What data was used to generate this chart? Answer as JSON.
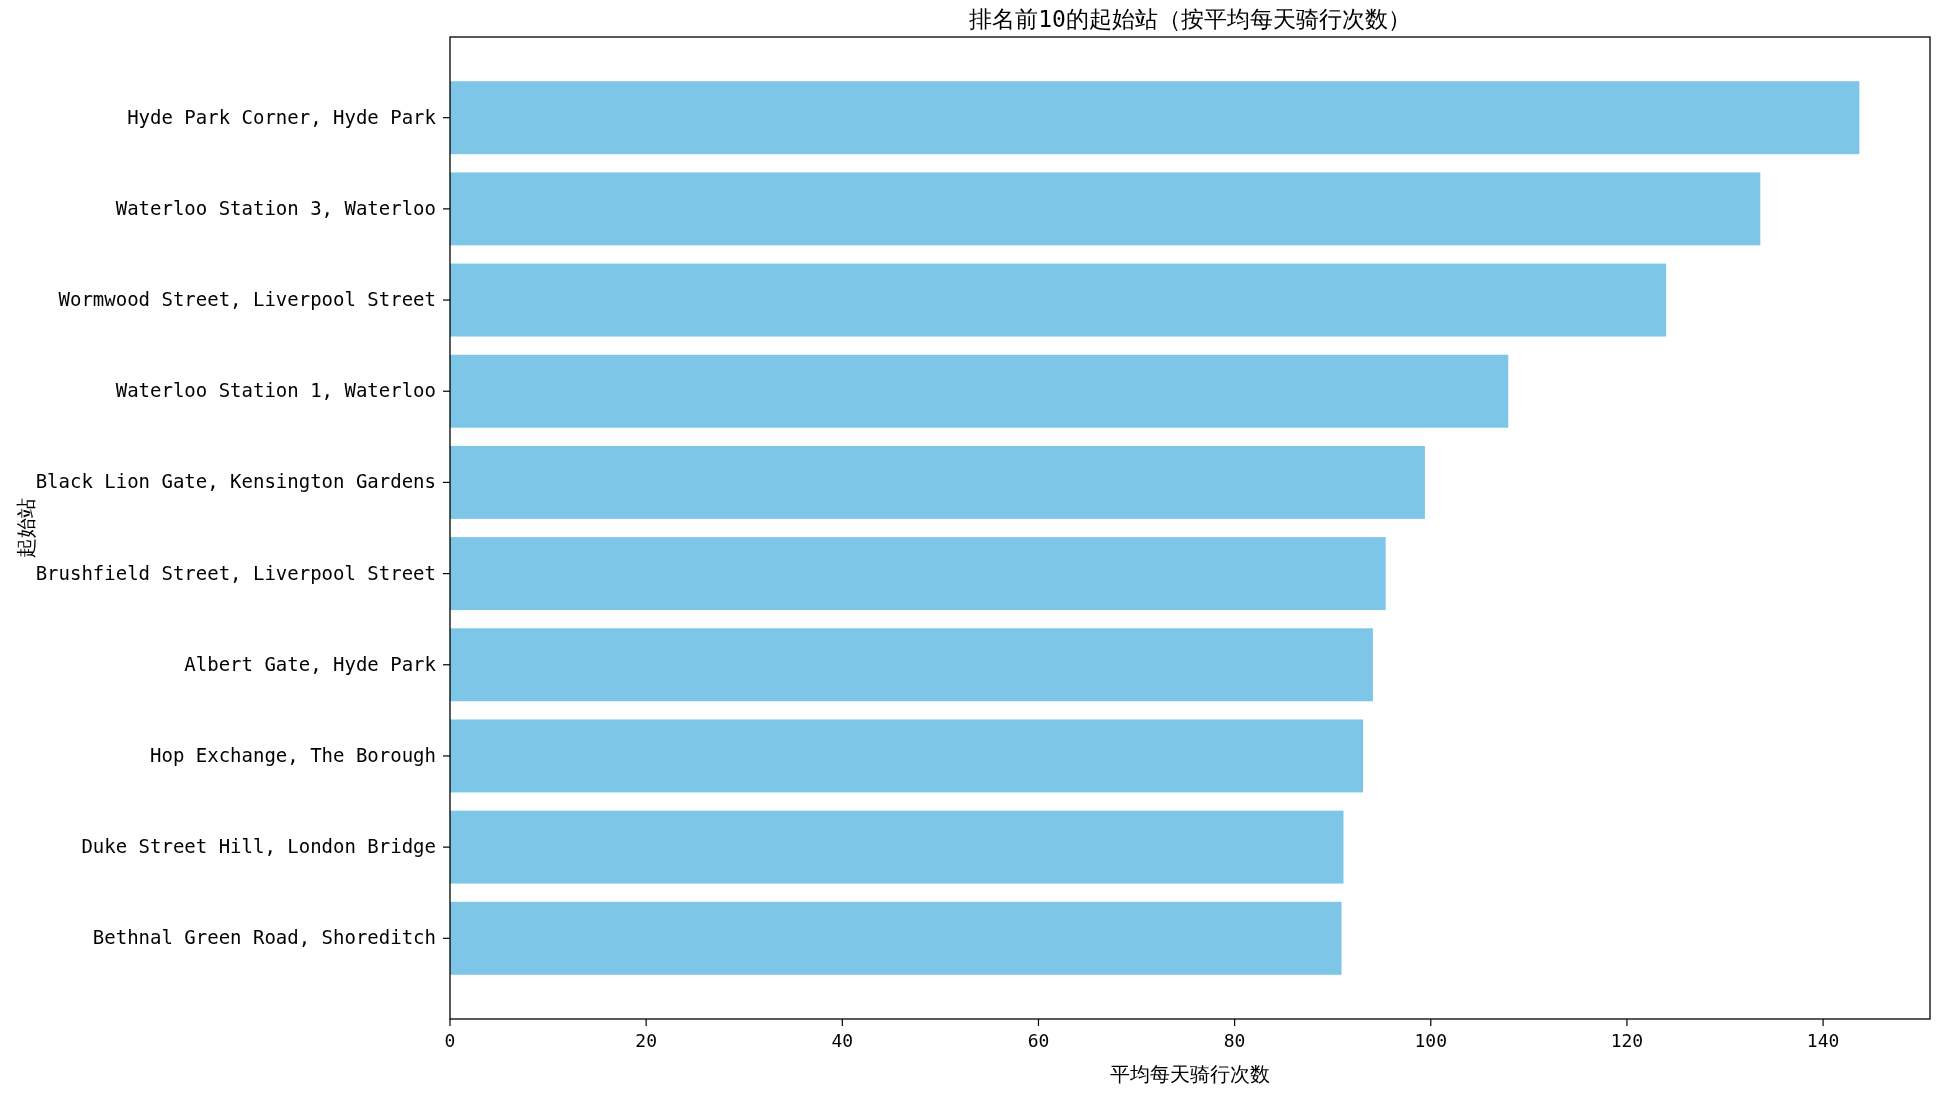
{
  "chart_data": {
    "type": "bar",
    "orientation": "horizontal",
    "title": "排名前10的起始站（按平均每天骑行次数）",
    "xlabel": "平均每天骑行次数",
    "ylabel": "起始站",
    "categories": [
      "Hyde Park Corner, Hyde Park",
      "Waterloo Station 3, Waterloo",
      "Wormwood Street, Liverpool Street",
      "Waterloo Station 1, Waterloo",
      "Black Lion Gate, Kensington Gardens",
      "Brushfield Street, Liverpool Street",
      "Albert Gate, Hyde Park",
      "Hop Exchange, The Borough",
      "Duke Street Hill, London Bridge",
      "Bethnal Green Road, Shoreditch"
    ],
    "values": [
      143.7,
      133.6,
      124.0,
      107.9,
      99.4,
      95.4,
      94.1,
      93.1,
      91.1,
      90.9
    ],
    "color": "#7dc6e7",
    "xlim": [
      0,
      150.9
    ],
    "xticks": [
      0,
      20,
      40,
      60,
      80,
      100,
      120,
      140
    ],
    "grid": false
  }
}
